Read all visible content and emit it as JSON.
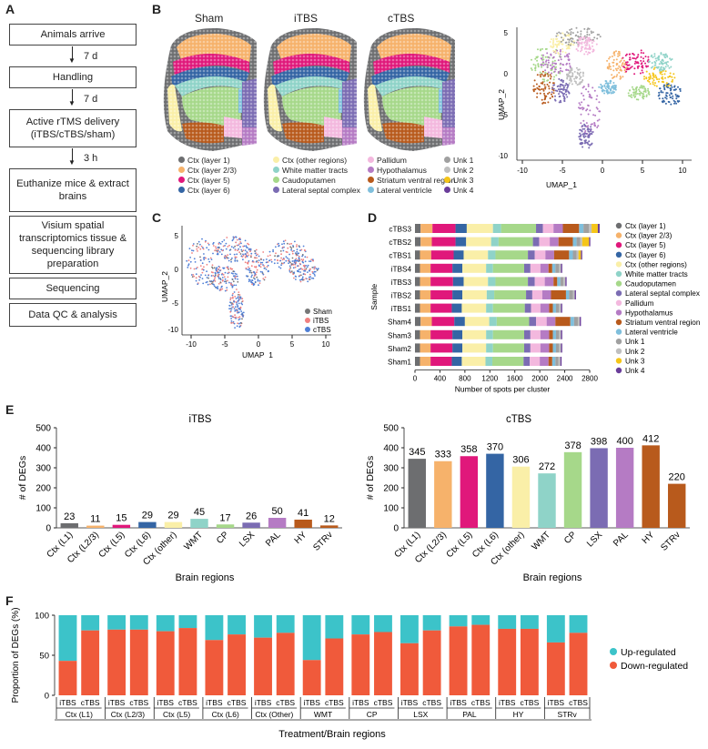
{
  "panels": {
    "a": "A",
    "b": "B",
    "c": "C",
    "d": "D",
    "e": "E",
    "f": "F"
  },
  "flow": {
    "steps": [
      "Animals arrive",
      "Handling",
      "Active rTMS delivery (iTBS/cTBS/sham)",
      "Euthanize mice & extract brains",
      "Visium spatial transcriptomics tissue & sequencing library preparation",
      "Sequencing",
      "Data QC & analysis"
    ],
    "arrows": [
      "7 d",
      "7 d",
      "3 h"
    ]
  },
  "panelB": {
    "titles": [
      "Sham",
      "iTBS",
      "cTBS"
    ],
    "umap_x": "UMAP_1",
    "umap_y": "UMAP_2",
    "umap_xticks": [
      "-10",
      "-5",
      "0",
      "5",
      "10"
    ],
    "umap_yticks": [
      "5",
      "0",
      "-5",
      "-10"
    ]
  },
  "clusters": [
    {
      "name": "Ctx (layer 1)",
      "color": "#6d6e70"
    },
    {
      "name": "Ctx (layer 2/3)",
      "color": "#f6b26b"
    },
    {
      "name": "Ctx (layer 5)",
      "color": "#e0187b"
    },
    {
      "name": "Ctx (layer 6)",
      "color": "#3465a4"
    },
    {
      "name": "Ctx (other regions)",
      "color": "#faefa8"
    },
    {
      "name": "White matter tracts",
      "color": "#8fd3c8"
    },
    {
      "name": "Caudoputamen",
      "color": "#a6d88a"
    },
    {
      "name": "Lateral septal complex",
      "color": "#7b6cb3"
    },
    {
      "name": "Pallidum",
      "color": "#f3b8de"
    },
    {
      "name": "Hypothalamus",
      "color": "#b57bc4"
    },
    {
      "name": "Striatum ventral region",
      "color": "#b85a1c"
    },
    {
      "name": "Lateral ventricle",
      "color": "#7fbfdc"
    },
    {
      "name": "Unk 1",
      "color": "#a0a0a0"
    },
    {
      "name": "Unk 2",
      "color": "#bfbfbf"
    },
    {
      "name": "Unk 3",
      "color": "#f5c518"
    },
    {
      "name": "Unk 4",
      "color": "#6a3d9a"
    }
  ],
  "panelC": {
    "xlabel": "UMAP_1",
    "ylabel": "UMAP_2",
    "xticks": [
      "-10",
      "-5",
      "0",
      "5",
      "10"
    ],
    "yticks": [
      "5",
      "0",
      "-5",
      "-10"
    ],
    "legend": [
      {
        "name": "Sham",
        "color": "#777777"
      },
      {
        "name": "iTBS",
        "color": "#f08080"
      },
      {
        "name": "cTBS",
        "color": "#4f7fd6"
      }
    ]
  },
  "chart_data": [
    {
      "type": "bar",
      "id": "D",
      "orientation": "horizontal",
      "stacked": true,
      "ylabel": "Sample",
      "xlabel": "Number of spots per cluster",
      "xlim": [
        0,
        2800
      ],
      "xticks": [
        "0",
        "400",
        "800",
        "1200",
        "1600",
        "2000",
        "2400",
        "2800"
      ],
      "categories": [
        "cTBS3",
        "cTBS2",
        "cTBS1",
        "iTBS4",
        "iTBS3",
        "iTBS2",
        "iTBS1",
        "Sham4",
        "Sham3",
        "Sham2",
        "Sham1"
      ],
      "series_names": [
        "Ctx (layer 1)",
        "Ctx (layer 2/3)",
        "Ctx (layer 5)",
        "Ctx (layer 6)",
        "Ctx (other regions)",
        "White matter tracts",
        "Caudoputamen",
        "Lateral septal complex",
        "Pallidum",
        "Hypothalamus",
        "Striatum ventral region",
        "Lateral ventricle",
        "Unk 1",
        "Unk 2",
        "Unk 3",
        "Unk 4"
      ],
      "values": [
        [
          90,
          190,
          370,
          180,
          420,
          130,
          560,
          110,
          170,
          150,
          260,
          70,
          90,
          40,
          100,
          30
        ],
        [
          90,
          180,
          380,
          170,
          400,
          120,
          550,
          100,
          170,
          140,
          230,
          60,
          60,
          30,
          110,
          20
        ],
        [
          80,
          180,
          360,
          160,
          390,
          120,
          520,
          110,
          170,
          140,
          240,
          60,
          60,
          30,
          40,
          20
        ],
        [
          80,
          170,
          350,
          160,
          380,
          110,
          500,
          100,
          160,
          130,
          60,
          50,
          60,
          30,
          0,
          20
        ],
        [
          80,
          170,
          360,
          170,
          390,
          120,
          520,
          110,
          160,
          140,
          60,
          50,
          50,
          30,
          0,
          20
        ],
        [
          80,
          170,
          350,
          160,
          390,
          120,
          510,
          100,
          160,
          140,
          240,
          50,
          60,
          30,
          0,
          20
        ],
        [
          80,
          170,
          340,
          160,
          390,
          110,
          510,
          100,
          150,
          140,
          60,
          50,
          50,
          30,
          0,
          20
        ],
        [
          90,
          180,
          360,
          170,
          390,
          120,
          520,
          110,
          170,
          140,
          240,
          60,
          60,
          30,
          0,
          20
        ],
        [
          80,
          170,
          350,
          160,
          380,
          110,
          500,
          100,
          160,
          140,
          60,
          50,
          50,
          30,
          0,
          20
        ],
        [
          80,
          170,
          350,
          160,
          380,
          110,
          500,
          100,
          160,
          140,
          60,
          50,
          50,
          30,
          0,
          20
        ],
        [
          80,
          170,
          340,
          160,
          380,
          110,
          500,
          100,
          160,
          140,
          60,
          50,
          50,
          30,
          0,
          20
        ]
      ]
    },
    {
      "type": "bar",
      "id": "E-iTBS",
      "title": "iTBS",
      "ylabel": "# of DEGs",
      "xlabel": "Brain regions",
      "ylim": [
        0,
        500
      ],
      "yticks": [
        "0",
        "100",
        "200",
        "300",
        "400",
        "500"
      ],
      "categories": [
        "Ctx (L1)",
        "Ctx (L2/3)",
        "Ctx (L5)",
        "Ctx (L6)",
        "Ctx (other)",
        "WMT",
        "CP",
        "LSX",
        "PAL",
        "HY",
        "STRv"
      ],
      "values": [
        23,
        11,
        15,
        29,
        29,
        45,
        17,
        26,
        50,
        41,
        12
      ],
      "labels": [
        "23",
        "11",
        "15",
        "29",
        "29",
        "45",
        "17",
        "26",
        "50",
        "41",
        "12"
      ]
    },
    {
      "type": "bar",
      "id": "E-cTBS",
      "title": "cTBS",
      "ylabel": "# of DEGs",
      "xlabel": "Brain regions",
      "ylim": [
        0,
        500
      ],
      "yticks": [
        "0",
        "100",
        "200",
        "300",
        "400",
        "500"
      ],
      "categories": [
        "Ctx (L1)",
        "Ctx (L2/3)",
        "Ctx (L5)",
        "Ctx (L6)",
        "Ctx (other)",
        "WMT",
        "CP",
        "LSX",
        "PAL",
        "HY",
        "STRv"
      ],
      "values": [
        345,
        333,
        358,
        370,
        306,
        272,
        378,
        398,
        400,
        412,
        220
      ],
      "labels": [
        "345",
        "333",
        "358",
        "370",
        "306",
        "272",
        "378",
        "398",
        "400",
        "412",
        "220"
      ]
    },
    {
      "type": "bar",
      "id": "F",
      "stacked": true,
      "ylabel": "Proportion of DEGs (%)",
      "xlabel": "Treatment/Brain regions",
      "ylim": [
        0,
        100
      ],
      "yticks": [
        "0",
        "50",
        "100"
      ],
      "groups": [
        "Ctx (L1)",
        "Ctx (L2/3)",
        "Ctx (L5)",
        "Ctx (L6)",
        "Ctx (Other)",
        "WMT",
        "CP",
        "LSX",
        "PAL",
        "HY",
        "STRv"
      ],
      "treatments": [
        "iTBS",
        "cTBS"
      ],
      "series": [
        {
          "name": "Up-regulated",
          "color": "#3cc3c9"
        },
        {
          "name": "Down-regulated",
          "color": "#f05a3b"
        }
      ],
      "down_percent": [
        [
          43,
          81
        ],
        [
          82,
          82
        ],
        [
          80,
          84
        ],
        [
          69,
          76
        ],
        [
          72,
          78
        ],
        [
          44,
          71
        ],
        [
          76,
          79
        ],
        [
          65,
          81
        ],
        [
          86,
          88
        ],
        [
          83,
          83
        ],
        [
          66,
          78
        ]
      ]
    }
  ]
}
